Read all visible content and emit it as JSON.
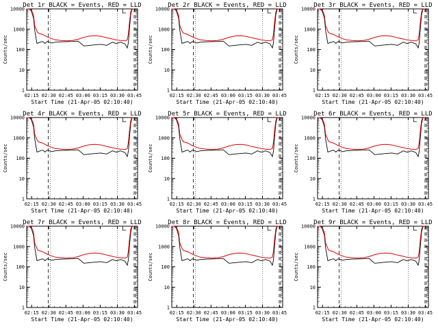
{
  "chart_data": {
    "type": "line",
    "layout": "3x3 grid",
    "y_scale": "log",
    "ylim": [
      1,
      10000
    ],
    "y_ticks": [
      "1",
      "10",
      "100",
      "1000",
      "10000"
    ],
    "ylabel": "Counts/sec",
    "x_ticks": [
      "02:15",
      "02:30",
      "02:45",
      "03:00",
      "03:15",
      "03:30",
      "03:45"
    ],
    "xlabel": "Start Time (21-Apr-05 02:10:40)",
    "series_colors": {
      "events": "#000000",
      "lld": "#e00000"
    },
    "panels": [
      {
        "title": "Det 1r BLACK = Events, RED = LLD"
      },
      {
        "title": "Det 2r BLACK = Events, RED = LLD"
      },
      {
        "title": "Det 3r BLACK = Events, RED = LLD"
      },
      {
        "title": "Det 4r BLACK = Events, RED = LLD"
      },
      {
        "title": "Det 5r BLACK = Events, RED = LLD"
      },
      {
        "title": "Det 6r BLACK = Events, RED = LLD"
      },
      {
        "title": "Det 7r BLACK = Events, RED = LLD"
      },
      {
        "title": "Det 8r BLACK = Events, RED = LLD"
      },
      {
        "title": "Det 9r BLACK = Events, RED = LLD"
      }
    ],
    "curve_minutes": [
      0,
      2,
      4,
      6,
      7,
      9,
      10,
      12,
      14,
      16,
      18,
      20,
      22,
      25,
      30,
      35,
      40,
      45,
      50,
      55,
      60,
      65,
      70,
      75,
      78,
      80,
      82,
      86,
      88,
      89,
      90,
      91,
      92,
      93,
      94
    ],
    "lld_counts": [
      10000,
      10000,
      9000,
      5000,
      1500,
      800,
      650,
      600,
      550,
      480,
      420,
      380,
      340,
      300,
      280,
      270,
      280,
      320,
      400,
      460,
      480,
      450,
      380,
      330,
      300,
      290,
      280,
      270,
      300,
      600,
      2500,
      7000,
      10000,
      10000,
      10000
    ],
    "events_counts": [
      10000,
      10000,
      8000,
      3500,
      900,
      200,
      210,
      230,
      250,
      200,
      250,
      230,
      210,
      230,
      240,
      245,
      250,
      260,
      150,
      160,
      170,
      180,
      160,
      230,
      200,
      210,
      230,
      190,
      120,
      220,
      1200,
      5000,
      9000,
      10000,
      10000
    ]
  }
}
